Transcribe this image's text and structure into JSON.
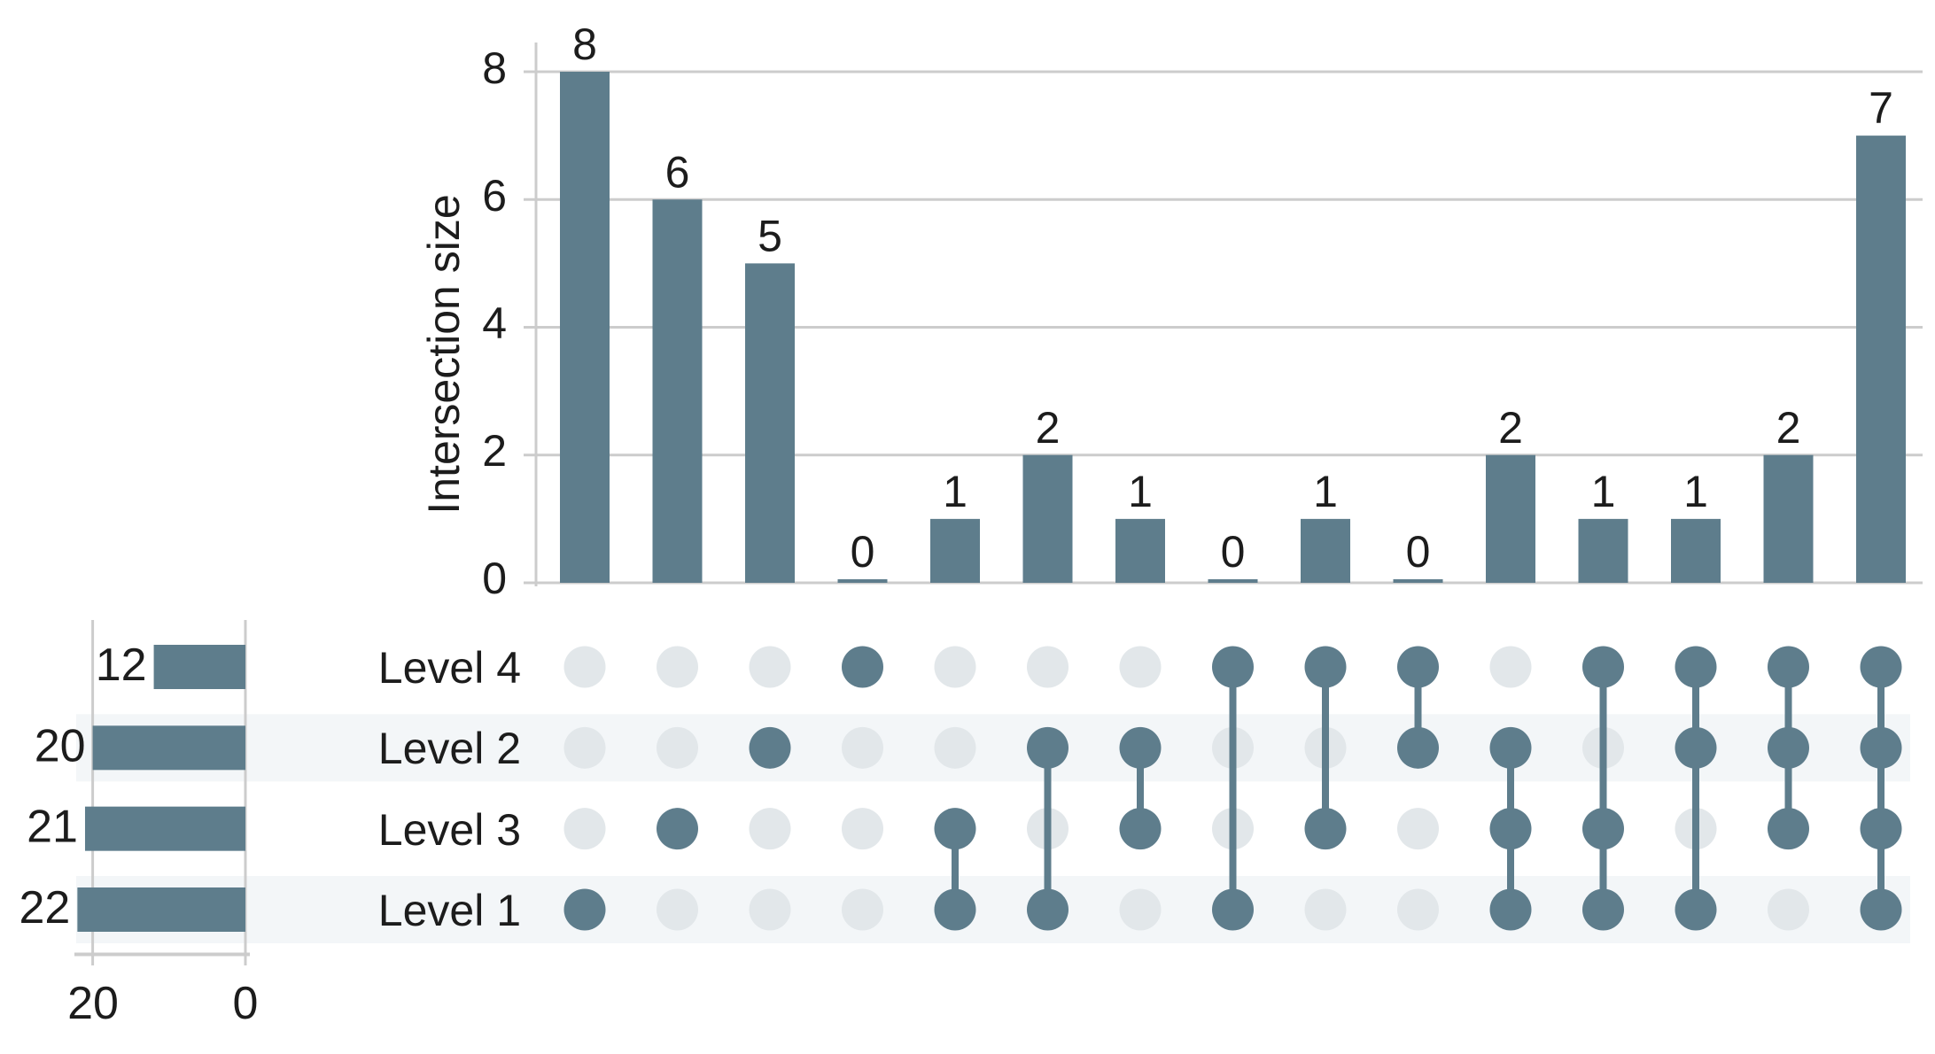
{
  "chart_data": {
    "type": "upset",
    "intersection_chart": {
      "type": "bar",
      "ylabel": "Intersection size",
      "yticks": [
        "8",
        "6",
        "4",
        "2",
        "0"
      ],
      "ytick_values": [
        8,
        6,
        4,
        2,
        0
      ],
      "ylim": [
        0,
        8
      ],
      "grid": true,
      "values": [
        8,
        6,
        5,
        0,
        1,
        2,
        1,
        0,
        1,
        0,
        2,
        1,
        1,
        2,
        7
      ],
      "bar_labels": [
        "8",
        "6",
        "5",
        "0",
        "1",
        "2",
        "1",
        "0",
        "1",
        "0",
        "2",
        "1",
        "1",
        "2",
        "7"
      ]
    },
    "set_chart": {
      "type": "bar-horizontal-reversed",
      "categories": [
        "Level 4",
        "Level 2",
        "Level 3",
        "Level 1"
      ],
      "values": [
        12,
        20,
        21,
        22
      ],
      "xticks": [
        "20",
        "0"
      ],
      "xtick_values": [
        20,
        0
      ],
      "xlim": [
        20,
        0
      ]
    },
    "matrix": {
      "rows": [
        "Level 4",
        "Level 2",
        "Level 3",
        "Level 1"
      ],
      "columns_membership": [
        [
          "Level 1"
        ],
        [
          "Level 3"
        ],
        [
          "Level 2"
        ],
        [
          "Level 4"
        ],
        [
          "Level 3",
          "Level 1"
        ],
        [
          "Level 2",
          "Level 1"
        ],
        [
          "Level 2",
          "Level 3"
        ],
        [
          "Level 4",
          "Level 1"
        ],
        [
          "Level 4",
          "Level 3"
        ],
        [
          "Level 4",
          "Level 2"
        ],
        [
          "Level 2",
          "Level 3",
          "Level 1"
        ],
        [
          "Level 4",
          "Level 3",
          "Level 1"
        ],
        [
          "Level 4",
          "Level 2",
          "Level 1"
        ],
        [
          "Level 4",
          "Level 2",
          "Level 3"
        ],
        [
          "Level 4",
          "Level 2",
          "Level 3",
          "Level 1"
        ]
      ],
      "striped_rows": [
        "Level 2",
        "Level 1"
      ]
    },
    "colors": {
      "bar": "#5e7d8c",
      "dot_active": "#5e7d8c",
      "dot_inactive": "#e2e7ea",
      "row_band": "#f3f6f8",
      "gridline": "#cccccc",
      "text": "#1c1c1c",
      "background": "#ffffff"
    }
  }
}
